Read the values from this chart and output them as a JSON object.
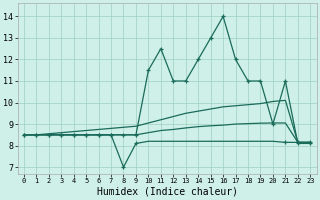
{
  "bg_color": "#cef0e8",
  "grid_color": "#9ecfbf",
  "line_color": "#1a6b5a",
  "x_ticks": [
    0,
    1,
    2,
    3,
    4,
    5,
    6,
    7,
    8,
    9,
    10,
    11,
    12,
    13,
    14,
    15,
    16,
    17,
    18,
    19,
    20,
    21,
    22,
    23
  ],
  "y_ticks": [
    7,
    8,
    9,
    10,
    11,
    12,
    13,
    14
  ],
  "xlim": [
    -0.5,
    23.5
  ],
  "ylim": [
    6.7,
    14.6
  ],
  "xlabel": "Humidex (Indice chaleur)",
  "zigzag_x": [
    0,
    1,
    2,
    3,
    4,
    5,
    6,
    7,
    8,
    9,
    10,
    11,
    12,
    13,
    14,
    15,
    16,
    17,
    18,
    19,
    20,
    21,
    22,
    23
  ],
  "zigzag_y": [
    8.5,
    8.5,
    8.5,
    8.5,
    8.5,
    8.5,
    8.5,
    8.5,
    8.5,
    8.5,
    11.5,
    12.5,
    11.0,
    11.0,
    12.0,
    13.0,
    14.0,
    12.0,
    11.0,
    11.0,
    9.0,
    11.0,
    8.1,
    8.1
  ],
  "upper_x": [
    0,
    1,
    2,
    3,
    4,
    5,
    6,
    7,
    8,
    9,
    10,
    11,
    12,
    13,
    14,
    15,
    16,
    17,
    18,
    19,
    20,
    21,
    22,
    23
  ],
  "upper_y": [
    8.5,
    8.5,
    8.55,
    8.6,
    8.65,
    8.7,
    8.75,
    8.8,
    8.85,
    8.9,
    9.05,
    9.2,
    9.35,
    9.5,
    9.6,
    9.7,
    9.8,
    9.85,
    9.9,
    9.95,
    10.05,
    10.1,
    8.15,
    8.15
  ],
  "lower_x": [
    0,
    1,
    2,
    3,
    4,
    5,
    6,
    7,
    8,
    9,
    10,
    11,
    12,
    13,
    14,
    15,
    16,
    17,
    18,
    19,
    20,
    21,
    22,
    23
  ],
  "lower_y": [
    8.5,
    8.5,
    8.5,
    8.5,
    8.5,
    8.5,
    8.5,
    8.5,
    7.0,
    8.1,
    8.2,
    8.2,
    8.2,
    8.2,
    8.2,
    8.2,
    8.2,
    8.2,
    8.2,
    8.2,
    8.2,
    8.15,
    8.15,
    8.15
  ],
  "flat_x": [
    0,
    1,
    2,
    3,
    4,
    5,
    6,
    7,
    8,
    9,
    10,
    11,
    12,
    13,
    14,
    15,
    16,
    17,
    18,
    19,
    20,
    21,
    22,
    23
  ],
  "flat_y": [
    8.5,
    8.5,
    8.5,
    8.5,
    8.5,
    8.5,
    8.5,
    8.5,
    8.5,
    8.5,
    8.6,
    8.7,
    8.75,
    8.82,
    8.88,
    8.92,
    8.95,
    9.0,
    9.02,
    9.04,
    9.05,
    9.05,
    8.15,
    8.15
  ],
  "lower_markers": [
    0,
    1,
    2,
    3,
    4,
    5,
    6,
    7,
    8,
    9,
    21,
    22,
    23
  ],
  "zigzag_markers": [
    0,
    1,
    2,
    3,
    4,
    5,
    6,
    7,
    8,
    9,
    10,
    11,
    12,
    13,
    14,
    15,
    16,
    17,
    18,
    19,
    20,
    21,
    22,
    23
  ]
}
